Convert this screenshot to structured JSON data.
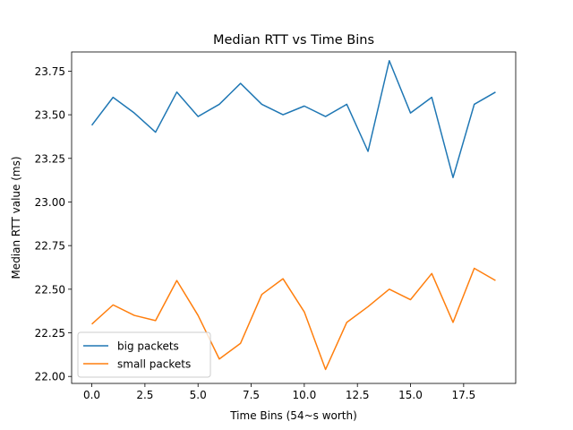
{
  "chart_data": {
    "type": "line",
    "title": "Median RTT vs Time Bins",
    "xlabel": "Time Bins (54~s worth)",
    "ylabel": "Median RTT value (ms)",
    "xlim": [
      -0.95,
      19.95
    ],
    "ylim": [
      21.96,
      23.86
    ],
    "xticks": [
      0.0,
      2.5,
      5.0,
      7.5,
      10.0,
      12.5,
      15.0,
      17.5
    ],
    "xtick_labels": [
      "0.0",
      "2.5",
      "5.0",
      "7.5",
      "10.0",
      "12.5",
      "15.0",
      "17.5"
    ],
    "yticks": [
      22.0,
      22.25,
      22.5,
      22.75,
      23.0,
      23.25,
      23.5,
      23.75
    ],
    "ytick_labels": [
      "22.00",
      "22.25",
      "22.50",
      "22.75",
      "23.00",
      "23.25",
      "23.50",
      "23.75"
    ],
    "grid": false,
    "legend_position": "lower-left",
    "x": [
      0,
      1,
      2,
      3,
      4,
      5,
      6,
      7,
      8,
      9,
      10,
      11,
      12,
      13,
      14,
      15,
      16,
      17,
      18,
      19
    ],
    "series": [
      {
        "name": "big packets",
        "color": "#1f77b4",
        "values": [
          23.44,
          23.6,
          23.51,
          23.4,
          23.63,
          23.49,
          23.56,
          23.68,
          23.56,
          23.5,
          23.55,
          23.49,
          23.56,
          23.29,
          23.81,
          23.51,
          23.6,
          23.14,
          23.56,
          23.63
        ]
      },
      {
        "name": "small packets",
        "color": "#ff7f0e",
        "values": [
          22.3,
          22.41,
          22.35,
          22.32,
          22.55,
          22.35,
          22.1,
          22.19,
          22.47,
          22.56,
          22.37,
          22.04,
          22.31,
          22.4,
          22.5,
          22.44,
          22.59,
          22.31,
          22.62,
          22.55
        ]
      }
    ]
  }
}
